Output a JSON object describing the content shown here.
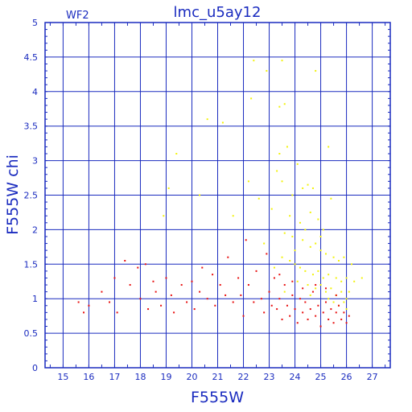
{
  "chart_data": {
    "type": "scatter",
    "title": "lmc_u5ay12",
    "corner_label": "WF2",
    "xlabel": "F555W",
    "ylabel": "F555W  chi",
    "xlim": [
      14.3,
      27.7
    ],
    "ylim": [
      0,
      5
    ],
    "xticks": [
      "15",
      "16",
      "17",
      "18",
      "19",
      "20",
      "21",
      "22",
      "23",
      "24",
      "25",
      "26",
      "27"
    ],
    "yticks": [
      "0",
      "0.5",
      "1",
      "1.5",
      "2",
      "2.5",
      "3",
      "3.5",
      "4",
      "4.5",
      "5"
    ],
    "grid": true,
    "colors": {
      "axis": "#1a2bbf",
      "grid": "#1a2bbf",
      "red": "#e81010",
      "yellow": "#f2f20a"
    },
    "series": [
      {
        "color": "yellow",
        "points": [
          [
            22.4,
            4.45
          ],
          [
            23.5,
            4.45
          ],
          [
            22.3,
            3.9
          ],
          [
            23.4,
            3.78
          ],
          [
            23.6,
            3.82
          ],
          [
            22.9,
            4.3
          ],
          [
            24.8,
            4.3
          ],
          [
            20.6,
            3.6
          ],
          [
            21.2,
            3.55
          ],
          [
            19.4,
            3.1
          ],
          [
            25.3,
            3.2
          ],
          [
            23.4,
            3.1
          ],
          [
            23.3,
            2.85
          ],
          [
            23.5,
            2.7
          ],
          [
            23.7,
            3.2
          ],
          [
            24.1,
            2.95
          ],
          [
            24.3,
            2.6
          ],
          [
            24.5,
            2.65
          ],
          [
            24.7,
            2.6
          ],
          [
            23.9,
            2.5
          ],
          [
            22.6,
            2.45
          ],
          [
            22.2,
            2.7
          ],
          [
            23.1,
            2.3
          ],
          [
            23.8,
            2.2
          ],
          [
            24.2,
            2.1
          ],
          [
            24.4,
            2.0
          ],
          [
            24.6,
            2.25
          ],
          [
            24.9,
            2.15
          ],
          [
            25.1,
            2.0
          ],
          [
            25.4,
            2.45
          ],
          [
            19.1,
            2.6
          ],
          [
            18.9,
            2.2
          ],
          [
            21.6,
            2.2
          ],
          [
            20.3,
            2.5
          ],
          [
            23.6,
            1.95
          ],
          [
            23.9,
            1.9
          ],
          [
            24.3,
            1.85
          ],
          [
            24.6,
            1.75
          ],
          [
            24.8,
            1.8
          ],
          [
            25.0,
            1.7
          ],
          [
            25.2,
            1.65
          ],
          [
            25.5,
            1.6
          ],
          [
            25.7,
            1.55
          ],
          [
            25.9,
            1.6
          ],
          [
            26.2,
            1.5
          ],
          [
            23.5,
            1.6
          ],
          [
            23.8,
            1.55
          ],
          [
            24.0,
            1.5
          ],
          [
            24.2,
            1.45
          ],
          [
            24.4,
            1.4
          ],
          [
            24.7,
            1.35
          ],
          [
            24.9,
            1.4
          ],
          [
            25.1,
            1.3
          ],
          [
            25.3,
            1.35
          ],
          [
            25.6,
            1.3
          ],
          [
            25.8,
            1.25
          ],
          [
            26.0,
            1.3
          ],
          [
            26.3,
            1.25
          ],
          [
            26.6,
            1.3
          ],
          [
            24.1,
            1.25
          ],
          [
            24.5,
            1.2
          ],
          [
            24.8,
            1.15
          ],
          [
            25.0,
            1.2
          ],
          [
            25.2,
            1.1
          ],
          [
            25.4,
            1.15
          ],
          [
            25.6,
            1.05
          ],
          [
            25.8,
            1.1
          ],
          [
            26.0,
            1.0
          ],
          [
            26.1,
            1.1
          ],
          [
            25.5,
            0.95
          ],
          [
            25.7,
            0.9
          ],
          [
            25.9,
            0.95
          ],
          [
            26.0,
            0.85
          ],
          [
            25.3,
            1.0
          ],
          [
            24.6,
            1.05
          ],
          [
            23.6,
            1.1
          ],
          [
            23.2,
            1.45
          ],
          [
            22.8,
            1.8
          ],
          [
            24.0,
            1.7
          ],
          [
            25.0,
            1.9
          ]
        ]
      },
      {
        "color": "red",
        "points": [
          [
            15.6,
            0.95
          ],
          [
            15.8,
            0.8
          ],
          [
            16.0,
            0.9
          ],
          [
            16.5,
            1.1
          ],
          [
            16.8,
            0.95
          ],
          [
            17.0,
            1.3
          ],
          [
            17.1,
            0.8
          ],
          [
            17.4,
            1.55
          ],
          [
            17.6,
            1.2
          ],
          [
            17.9,
            1.45
          ],
          [
            18.0,
            1.0
          ],
          [
            18.2,
            1.5
          ],
          [
            18.3,
            0.85
          ],
          [
            18.5,
            1.25
          ],
          [
            18.6,
            1.1
          ],
          [
            18.8,
            0.9
          ],
          [
            19.0,
            1.3
          ],
          [
            19.2,
            1.05
          ],
          [
            19.3,
            0.8
          ],
          [
            19.6,
            1.2
          ],
          [
            19.8,
            0.95
          ],
          [
            20.0,
            1.25
          ],
          [
            20.1,
            0.85
          ],
          [
            20.3,
            1.1
          ],
          [
            20.4,
            1.45
          ],
          [
            20.6,
            1.0
          ],
          [
            20.8,
            1.35
          ],
          [
            20.9,
            0.9
          ],
          [
            21.1,
            1.2
          ],
          [
            21.3,
            1.05
          ],
          [
            21.4,
            1.6
          ],
          [
            21.6,
            0.95
          ],
          [
            21.8,
            1.3
          ],
          [
            21.9,
            1.05
          ],
          [
            22.0,
            0.75
          ],
          [
            22.1,
            1.85
          ],
          [
            22.2,
            1.2
          ],
          [
            22.4,
            0.95
          ],
          [
            22.5,
            1.4
          ],
          [
            22.7,
            1.0
          ],
          [
            22.8,
            0.8
          ],
          [
            22.9,
            1.65
          ],
          [
            23.0,
            1.1
          ],
          [
            23.1,
            0.9
          ],
          [
            23.2,
            1.3
          ],
          [
            23.3,
            0.85
          ],
          [
            23.4,
            1.0
          ],
          [
            23.5,
            0.7
          ],
          [
            23.6,
            1.2
          ],
          [
            23.7,
            0.9
          ],
          [
            23.8,
            0.75
          ],
          [
            23.9,
            1.05
          ],
          [
            24.0,
            0.85
          ],
          [
            24.1,
            0.65
          ],
          [
            24.2,
            1.0
          ],
          [
            24.3,
            0.8
          ],
          [
            24.4,
            0.95
          ],
          [
            24.5,
            0.7
          ],
          [
            24.6,
            0.85
          ],
          [
            24.7,
            1.1
          ],
          [
            24.8,
            0.75
          ],
          [
            24.9,
            0.9
          ],
          [
            25.0,
            0.6
          ],
          [
            25.1,
            0.8
          ],
          [
            25.2,
            0.95
          ],
          [
            25.3,
            0.7
          ],
          [
            25.4,
            0.85
          ],
          [
            25.5,
            0.65
          ],
          [
            25.6,
            0.8
          ],
          [
            25.7,
            0.9
          ],
          [
            25.8,
            0.7
          ],
          [
            25.9,
            0.8
          ],
          [
            26.0,
            0.65
          ],
          [
            26.1,
            0.75
          ],
          [
            25.6,
            1.05
          ],
          [
            25.2,
            1.15
          ],
          [
            24.8,
            1.2
          ],
          [
            24.3,
            1.15
          ],
          [
            23.9,
            1.25
          ],
          [
            23.4,
            1.35
          ]
        ]
      }
    ]
  }
}
